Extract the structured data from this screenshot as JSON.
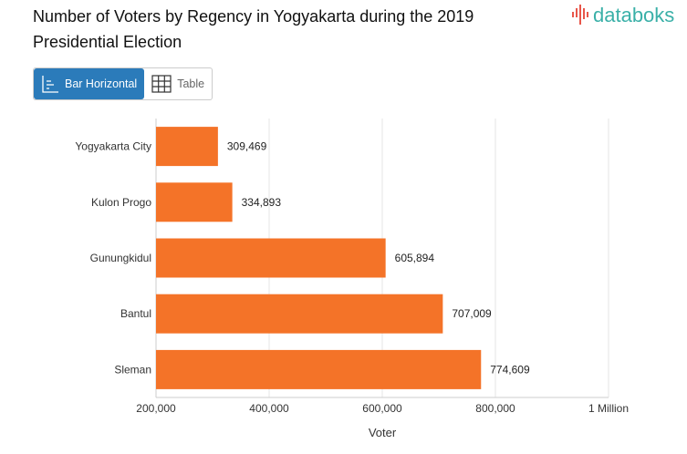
{
  "header": {
    "title": "Number of Voters by Regency in Yogyakarta during the 2019 Presidential Election",
    "logo": "databoks"
  },
  "toggle": {
    "bar_label": "Bar Horizontal",
    "table_label": "Table"
  },
  "colors": {
    "bar": "#f47328",
    "accent": "#2b7bba",
    "logo": "#3ab0a8"
  },
  "chart_data": {
    "type": "bar",
    "orientation": "horizontal",
    "categories": [
      "Yogyakarta City",
      "Kulon Progo",
      "Gunungkidul",
      "Bantul",
      "Sleman"
    ],
    "values": [
      309469,
      334893,
      605894,
      707009,
      774609
    ],
    "value_labels": [
      "309,469",
      "334,893",
      "605,894",
      "707,009",
      "774,609"
    ],
    "xlabel": "Voter",
    "xlim": [
      200000,
      1000000
    ],
    "ticks": [
      200000,
      400000,
      600000,
      800000,
      1000000
    ],
    "tick_labels": [
      "200,000",
      "400,000",
      "600,000",
      "800,000",
      "1 Million"
    ],
    "grid": true
  }
}
